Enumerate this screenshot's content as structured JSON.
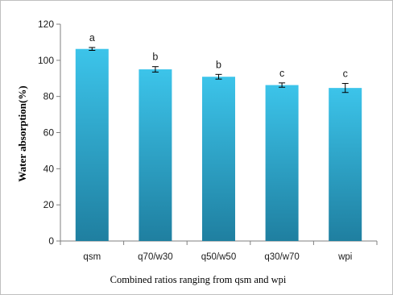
{
  "chart_data": {
    "type": "bar",
    "categories": [
      "qsm",
      "q70/w30",
      "q50/w50",
      "q30/w70",
      "wpi"
    ],
    "values": [
      106.3,
      95.0,
      90.9,
      86.3,
      84.7
    ],
    "errors": [
      0.8,
      1.5,
      1.3,
      1.2,
      2.5
    ],
    "significance_letters": [
      "a",
      "b",
      "b",
      "c",
      "c"
    ],
    "xlabel": "Combined ratios ranging from qsm and wpi",
    "ylabel": "Water absorption(%)",
    "ylim": [
      0,
      120
    ],
    "yticks": [
      0,
      20,
      40,
      60,
      80,
      100,
      120
    ],
    "grid": false,
    "legend": "none",
    "colors": {
      "bar_top": "#3cc4ea",
      "bar_bottom": "#1f7fa0",
      "axis": "#7f7f7f",
      "error_bar": "#000000"
    }
  }
}
